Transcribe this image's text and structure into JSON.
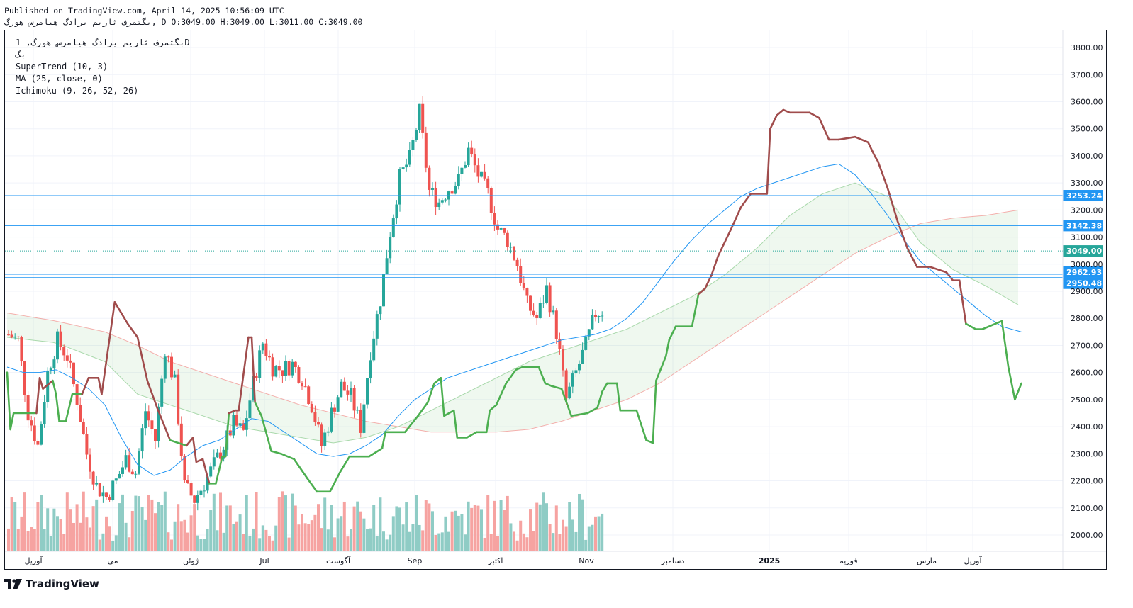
{
  "header": {
    "published": "Published on TradingView.com, April 14, 2025 10:56:09 UTC",
    "ohlc": "بگتمرف ثاریم یرادگ هیامرس هورگ, D O:3049.00 H:3049.00 L:3011.00 C:3049.00"
  },
  "legend": {
    "symbol_line": "بگتمرف ثاریم یرادگ هیامرس هورگ, 1D",
    "sub_line": "بگ",
    "indicators": [
      "SuperTrend (10, 3)",
      "MA (25, close, 0)",
      "Ichimoku (9, 26, 52, 26)"
    ]
  },
  "brand": {
    "name": "TradingView",
    "logo_icon": "tradingview-logo-icon"
  },
  "colors": {
    "up": "#26a69a",
    "down": "#ef5350",
    "vol_up": "#8fccc5",
    "vol_down": "#f6a3a1",
    "supertrend_up": "#4caf50",
    "supertrend_down": "#a04c4c",
    "ma": "#2196f3",
    "cloud_bull": "#4caf50",
    "cloud_bear": "#ef5350",
    "hline": "#2196f3",
    "last": "#26a69a"
  },
  "chart_data": {
    "type": "candlestick",
    "timeframe": "1D",
    "y_axis": {
      "ticks": [
        2000,
        2100,
        2200,
        2300,
        2400,
        2500,
        2600,
        2700,
        2800,
        2900,
        3000,
        3100,
        3200,
        3300,
        3400,
        3500,
        3600,
        3700,
        3800
      ],
      "range": [
        1940,
        3850
      ]
    },
    "x_axis": {
      "labels": [
        "آوریل",
        "می",
        "ژوئن",
        "Jul",
        "آگوست",
        "Sep",
        "اکتبر",
        "Nov",
        "دسامبر",
        "2025",
        "فوریه",
        "مارس",
        "آوریل"
      ]
    },
    "price_lines": [
      {
        "value": 3253.24,
        "label": "3253.24"
      },
      {
        "value": 3142.38,
        "label": "3142.38"
      },
      {
        "value": 2962.93,
        "label": "2962.93"
      },
      {
        "value": 2950.48,
        "label": "2950.48"
      }
    ],
    "last_price": {
      "value": 3049.0,
      "label": "3049.00"
    },
    "close_anchors": [
      [
        0,
        2740
      ],
      [
        6,
        2720
      ],
      [
        12,
        2450
      ],
      [
        18,
        2330
      ],
      [
        24,
        2600
      ],
      [
        30,
        2720
      ],
      [
        36,
        2660
      ],
      [
        42,
        2500
      ],
      [
        48,
        2300
      ],
      [
        54,
        2180
      ],
      [
        60,
        2140
      ],
      [
        66,
        2200
      ],
      [
        72,
        2280
      ],
      [
        78,
        2230
      ],
      [
        84,
        2460
      ],
      [
        90,
        2350
      ],
      [
        96,
        2690
      ],
      [
        102,
        2560
      ],
      [
        108,
        2180
      ],
      [
        114,
        2130
      ],
      [
        120,
        2190
      ],
      [
        126,
        2260
      ],
      [
        132,
        2330
      ],
      [
        138,
        2410
      ],
      [
        144,
        2380
      ],
      [
        150,
        2560
      ],
      [
        156,
        2710
      ],
      [
        162,
        2620
      ],
      [
        168,
        2610
      ],
      [
        174,
        2630
      ],
      [
        180,
        2580
      ],
      [
        186,
        2480
      ],
      [
        192,
        2330
      ],
      [
        198,
        2450
      ],
      [
        204,
        2550
      ],
      [
        210,
        2510
      ],
      [
        216,
        2400
      ],
      [
        222,
        2680
      ],
      [
        228,
        2870
      ],
      [
        234,
        3120
      ],
      [
        240,
        3320
      ],
      [
        246,
        3390
      ],
      [
        252,
        3560
      ],
      [
        258,
        3270
      ],
      [
        264,
        3230
      ],
      [
        270,
        3280
      ],
      [
        276,
        3310
      ],
      [
        282,
        3420
      ],
      [
        288,
        3330
      ],
      [
        294,
        3260
      ],
      [
        300,
        3130
      ],
      [
        306,
        3090
      ],
      [
        312,
        3000
      ],
      [
        318,
        2850
      ],
      [
        324,
        2800
      ],
      [
        330,
        2910
      ],
      [
        336,
        2750
      ],
      [
        342,
        2500
      ],
      [
        348,
        2600
      ],
      [
        354,
        2700
      ],
      [
        360,
        2820
      ],
      [
        365,
        2830
      ]
    ],
    "supertrend": [
      [
        0,
        2600
      ],
      [
        2,
        2390
      ],
      [
        4,
        2450
      ],
      [
        18,
        2450
      ],
      [
        20,
        2580
      ],
      [
        22,
        2540
      ],
      [
        28,
        2570
      ],
      [
        30,
        2520
      ],
      [
        32,
        2420
      ],
      [
        36,
        2420
      ],
      [
        40,
        2520
      ],
      [
        46,
        2520
      ],
      [
        50,
        2580
      ],
      [
        56,
        2580
      ],
      [
        58,
        2520
      ],
      [
        66,
        2860
      ],
      [
        70,
        2820
      ],
      [
        74,
        2780
      ],
      [
        80,
        2730
      ],
      [
        86,
        2570
      ],
      [
        92,
        2470
      ],
      [
        100,
        2350
      ],
      [
        110,
        2330
      ],
      [
        114,
        2360
      ],
      [
        116,
        2270
      ],
      [
        120,
        2280
      ],
      [
        124,
        2190
      ],
      [
        128,
        2190
      ],
      [
        132,
        2290
      ],
      [
        134,
        2290
      ],
      [
        136,
        2450
      ],
      [
        140,
        2460
      ],
      [
        142,
        2460
      ],
      [
        148,
        2730
      ],
      [
        150,
        2730
      ],
      [
        152,
        2490
      ],
      [
        156,
        2440
      ],
      [
        162,
        2310
      ],
      [
        168,
        2300
      ],
      [
        176,
        2280
      ],
      [
        184,
        2210
      ],
      [
        190,
        2160
      ],
      [
        198,
        2160
      ],
      [
        204,
        2230
      ],
      [
        210,
        2290
      ],
      [
        222,
        2290
      ],
      [
        230,
        2320
      ],
      [
        232,
        2380
      ],
      [
        244,
        2380
      ],
      [
        252,
        2440
      ],
      [
        258,
        2490
      ],
      [
        262,
        2560
      ],
      [
        266,
        2580
      ],
      [
        268,
        2440
      ],
      [
        274,
        2460
      ],
      [
        276,
        2360
      ],
      [
        282,
        2360
      ],
      [
        288,
        2380
      ],
      [
        294,
        2380
      ],
      [
        296,
        2460
      ],
      [
        300,
        2480
      ],
      [
        306,
        2560
      ],
      [
        312,
        2610
      ],
      [
        316,
        2620
      ],
      [
        326,
        2620
      ],
      [
        330,
        2560
      ],
      [
        334,
        2550
      ],
      [
        340,
        2540
      ],
      [
        346,
        2440
      ],
      [
        356,
        2450
      ],
      [
        362,
        2470
      ],
      [
        365,
        2530
      ],
      [
        368,
        2560
      ],
      [
        374,
        2560
      ],
      [
        376,
        2460
      ],
      [
        386,
        2460
      ],
      [
        392,
        2350
      ],
      [
        396,
        2340
      ],
      [
        398,
        2570
      ],
      [
        404,
        2660
      ],
      [
        406,
        2720
      ],
      [
        410,
        2770
      ],
      [
        420,
        2770
      ],
      [
        424,
        2890
      ],
      [
        428,
        2910
      ],
      [
        432,
        2960
      ],
      [
        436,
        3030
      ],
      [
        440,
        3080
      ],
      [
        444,
        3130
      ],
      [
        450,
        3210
      ],
      [
        456,
        3260
      ],
      [
        466,
        3260
      ],
      [
        468,
        3500
      ],
      [
        472,
        3550
      ],
      [
        476,
        3570
      ],
      [
        480,
        3560
      ],
      [
        492,
        3560
      ],
      [
        498,
        3540
      ],
      [
        504,
        3460
      ],
      [
        510,
        3460
      ],
      [
        520,
        3470
      ],
      [
        528,
        3450
      ],
      [
        532,
        3400
      ],
      [
        534,
        3380
      ],
      [
        540,
        3280
      ],
      [
        546,
        3160
      ],
      [
        552,
        3060
      ],
      [
        558,
        2990
      ],
      [
        566,
        2990
      ],
      [
        576,
        2970
      ],
      [
        580,
        2940
      ],
      [
        584,
        2940
      ],
      [
        588,
        2780
      ],
      [
        594,
        2760
      ],
      [
        598,
        2760
      ],
      [
        610,
        2790
      ],
      [
        614,
        2620
      ],
      [
        618,
        2500
      ],
      [
        622,
        2560
      ]
    ],
    "ma25": [
      [
        0,
        2620
      ],
      [
        10,
        2600
      ],
      [
        20,
        2600
      ],
      [
        30,
        2610
      ],
      [
        40,
        2580
      ],
      [
        50,
        2540
      ],
      [
        60,
        2480
      ],
      [
        70,
        2360
      ],
      [
        80,
        2260
      ],
      [
        90,
        2220
      ],
      [
        100,
        2240
      ],
      [
        110,
        2290
      ],
      [
        120,
        2330
      ],
      [
        130,
        2350
      ],
      [
        140,
        2390
      ],
      [
        150,
        2430
      ],
      [
        160,
        2420
      ],
      [
        170,
        2380
      ],
      [
        180,
        2340
      ],
      [
        190,
        2300
      ],
      [
        200,
        2290
      ],
      [
        210,
        2300
      ],
      [
        220,
        2330
      ],
      [
        230,
        2370
      ],
      [
        240,
        2440
      ],
      [
        250,
        2500
      ],
      [
        260,
        2540
      ],
      [
        270,
        2580
      ],
      [
        280,
        2600
      ],
      [
        290,
        2620
      ],
      [
        300,
        2640
      ],
      [
        310,
        2660
      ],
      [
        320,
        2680
      ],
      [
        330,
        2700
      ],
      [
        340,
        2720
      ],
      [
        350,
        2730
      ],
      [
        360,
        2740
      ],
      [
        370,
        2760
      ],
      [
        380,
        2800
      ],
      [
        390,
        2860
      ],
      [
        400,
        2940
      ],
      [
        410,
        3020
      ],
      [
        420,
        3090
      ],
      [
        430,
        3150
      ],
      [
        440,
        3200
      ],
      [
        450,
        3250
      ],
      [
        460,
        3280
      ],
      [
        470,
        3300
      ],
      [
        480,
        3320
      ],
      [
        490,
        3340
      ],
      [
        500,
        3360
      ],
      [
        510,
        3370
      ],
      [
        520,
        3330
      ],
      [
        530,
        3260
      ],
      [
        540,
        3180
      ],
      [
        550,
        3090
      ],
      [
        560,
        3010
      ],
      [
        570,
        2960
      ],
      [
        580,
        2910
      ],
      [
        590,
        2860
      ],
      [
        600,
        2810
      ],
      [
        610,
        2770
      ],
      [
        622,
        2750
      ]
    ],
    "ichimoku_span_a": [
      [
        0,
        2730
      ],
      [
        30,
        2710
      ],
      [
        60,
        2640
      ],
      [
        80,
        2520
      ],
      [
        100,
        2480
      ],
      [
        120,
        2440
      ],
      [
        140,
        2400
      ],
      [
        160,
        2380
      ],
      [
        180,
        2360
      ],
      [
        200,
        2340
      ],
      [
        220,
        2360
      ],
      [
        240,
        2400
      ],
      [
        260,
        2460
      ],
      [
        280,
        2520
      ],
      [
        300,
        2580
      ],
      [
        320,
        2640
      ],
      [
        340,
        2680
      ],
      [
        360,
        2720
      ],
      [
        380,
        2760
      ],
      [
        400,
        2820
      ],
      [
        420,
        2880
      ],
      [
        440,
        2960
      ],
      [
        460,
        3060
      ],
      [
        480,
        3180
      ],
      [
        500,
        3260
      ],
      [
        520,
        3300
      ],
      [
        540,
        3250
      ],
      [
        560,
        3080
      ],
      [
        580,
        2980
      ],
      [
        600,
        2920
      ],
      [
        620,
        2850
      ]
    ],
    "ichimoku_span_b": [
      [
        0,
        2820
      ],
      [
        30,
        2790
      ],
      [
        60,
        2750
      ],
      [
        80,
        2700
      ],
      [
        100,
        2640
      ],
      [
        120,
        2600
      ],
      [
        140,
        2560
      ],
      [
        160,
        2520
      ],
      [
        180,
        2480
      ],
      [
        200,
        2450
      ],
      [
        220,
        2420
      ],
      [
        240,
        2400
      ],
      [
        260,
        2380
      ],
      [
        280,
        2380
      ],
      [
        300,
        2380
      ],
      [
        320,
        2390
      ],
      [
        340,
        2420
      ],
      [
        360,
        2460
      ],
      [
        380,
        2500
      ],
      [
        400,
        2560
      ],
      [
        420,
        2640
      ],
      [
        440,
        2720
      ],
      [
        460,
        2800
      ],
      [
        480,
        2880
      ],
      [
        500,
        2960
      ],
      [
        520,
        3040
      ],
      [
        540,
        3100
      ],
      [
        560,
        3150
      ],
      [
        580,
        3170
      ],
      [
        600,
        3180
      ],
      [
        620,
        3200
      ]
    ]
  }
}
